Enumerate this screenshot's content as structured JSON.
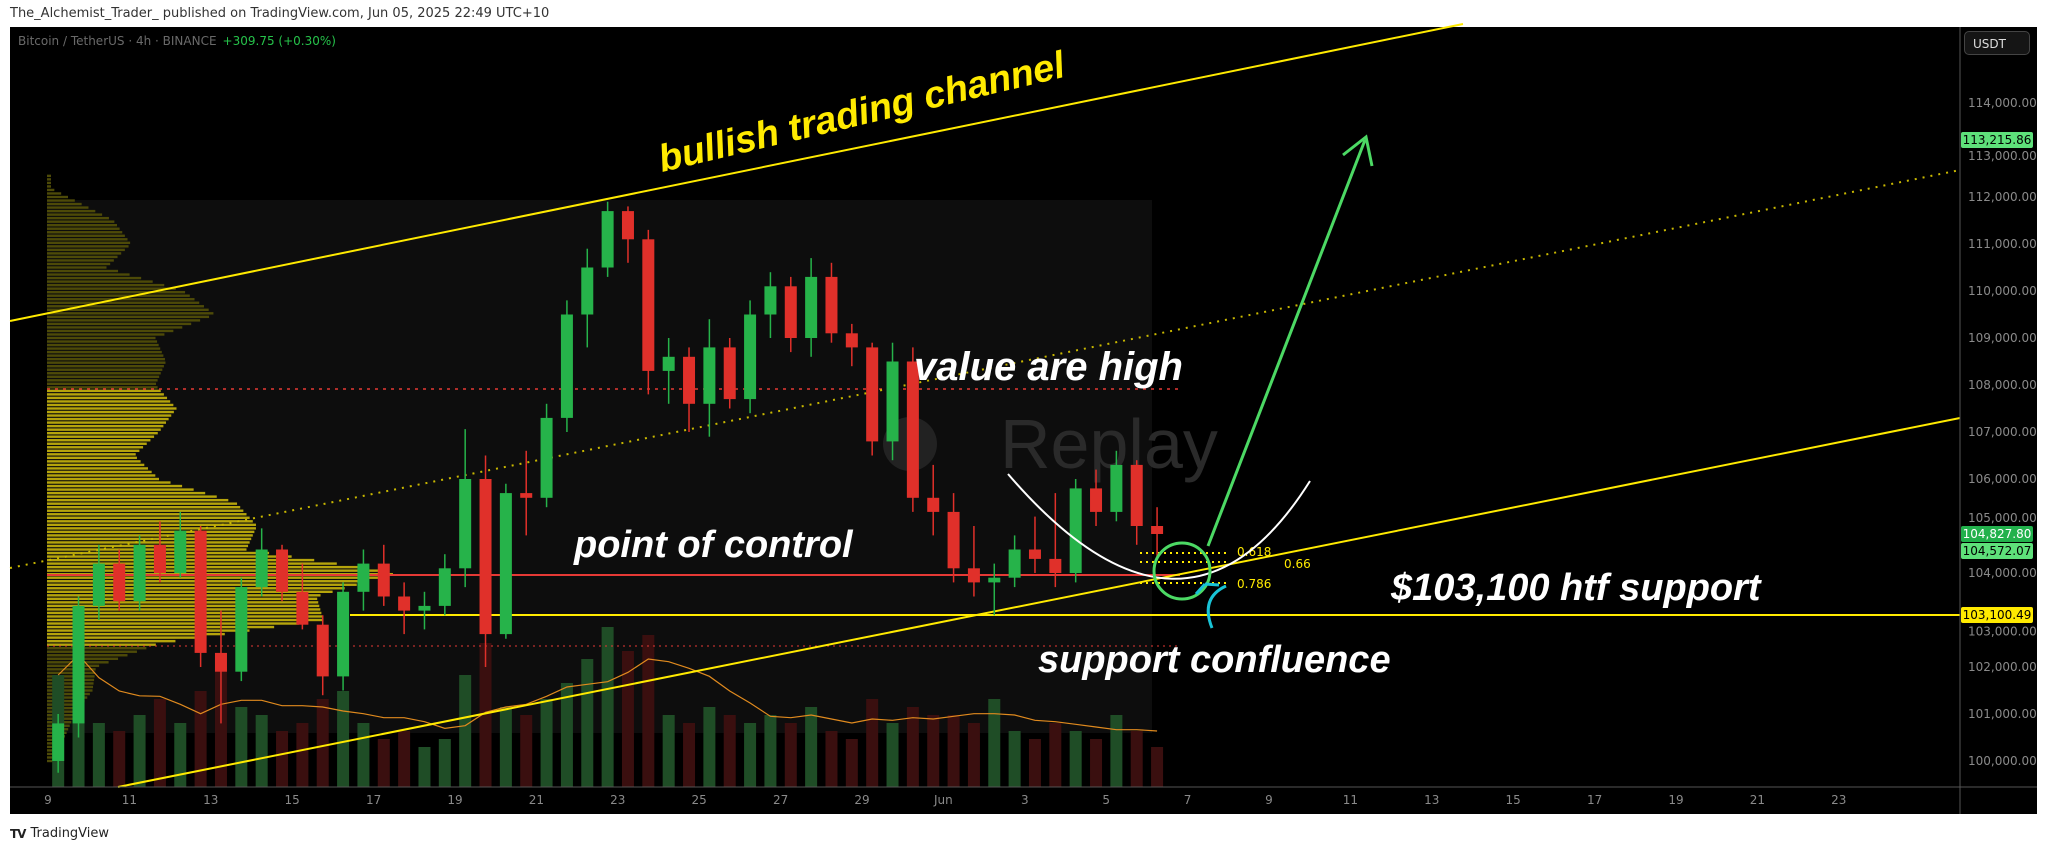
{
  "header": {
    "published": "The_Alchemist_Trader_ published on TradingView.com, Jun 05, 2025 22:49 UTC+10",
    "symbol": "Bitcoin / TetherUS · 4h · BINANCE",
    "change": "+309.75 (+0.30%)"
  },
  "footer": {
    "brand": "TradingView"
  },
  "watermark": "Replay",
  "colors": {
    "up": "#26b34a",
    "down": "#e0302a",
    "channel": "#ffea00",
    "poc": "#e53935",
    "arrow": "#4cd964",
    "circle": "#4cd964",
    "cyan_arrow": "#19c3d6",
    "curve": "#ffffff"
  },
  "annotations": {
    "channel": "bullish trading channel",
    "vah": "value are high",
    "poc": "point of control",
    "htf": "$103,100 htf support",
    "confluence": "support confluence",
    "fib_618": "0.618",
    "fib_66": "0.66",
    "fib_786": "0.786"
  },
  "chart_data": {
    "type": "candlestick",
    "symbol": "BTCUSDT",
    "currency": "USDT",
    "ylim": [
      99500,
      115500
    ],
    "y_ticks": [
      "114,000.00",
      "113,000.00",
      "112,000.00",
      "111,000.00",
      "110,000.00",
      "109,000.00",
      "108,000.00",
      "107,000.00",
      "106,000.00",
      "105,000.00",
      "104,000.00",
      "103,000.00",
      "102,000.00",
      "101,000.00",
      "100,000.00"
    ],
    "x_ticks": [
      "9",
      "11",
      "13",
      "15",
      "17",
      "19",
      "21",
      "23",
      "25",
      "27",
      "29",
      "Jun",
      "3",
      "5",
      "7",
      "9",
      "11",
      "13",
      "15",
      "17",
      "19",
      "21",
      "23"
    ],
    "price_tags": [
      {
        "label": "113,215.86",
        "value": 113215.86,
        "bg": "#5ee07a",
        "fg": "#000"
      },
      {
        "label": "104,827.80",
        "value": 104827.8,
        "bg": "#22b14c",
        "fg": "#fff"
      },
      {
        "label": "104,572.07",
        "value": 104572.07,
        "bg": "#5ee07a",
        "fg": "#000"
      },
      {
        "label": "103,100.49",
        "value": 103100.49,
        "bg": "#ffea00",
        "fg": "#000"
      }
    ],
    "levels": {
      "value_area_high": 107900,
      "point_of_control": 103950,
      "value_area_low": 102450,
      "htf_support": 103100.49
    },
    "candles_12h": [
      [
        100000,
        101000,
        99750,
        100800
      ],
      [
        100800,
        103500,
        100500,
        103300
      ],
      [
        103300,
        104600,
        103000,
        104200
      ],
      [
        104200,
        104500,
        103200,
        103400
      ],
      [
        103400,
        104800,
        103200,
        104600
      ],
      [
        104600,
        105100,
        103800,
        104000
      ],
      [
        104000,
        105300,
        103900,
        104900
      ],
      [
        104900,
        105000,
        102000,
        102300
      ],
      [
        102300,
        103200,
        100800,
        101900
      ],
      [
        101900,
        103900,
        101700,
        103700
      ],
      [
        103700,
        104950,
        103500,
        104500
      ],
      [
        104500,
        104600,
        103400,
        103600
      ],
      [
        103600,
        104200,
        102800,
        102900
      ],
      [
        102900,
        103100,
        101400,
        101800
      ],
      [
        101800,
        103800,
        101500,
        103600
      ],
      [
        103600,
        104500,
        103200,
        104200
      ],
      [
        104200,
        104600,
        103300,
        103500
      ],
      [
        103500,
        103800,
        102700,
        103200
      ],
      [
        103200,
        103600,
        102800,
        103300
      ],
      [
        103300,
        104400,
        103100,
        104100
      ],
      [
        104100,
        107060,
        103700,
        106000
      ],
      [
        106000,
        106500,
        102000,
        102700
      ],
      [
        102700,
        105900,
        102600,
        105700
      ],
      [
        105700,
        106600,
        104800,
        105600
      ],
      [
        105600,
        107600,
        105400,
        107300
      ],
      [
        107300,
        109800,
        107000,
        109500
      ],
      [
        109500,
        110900,
        108800,
        110500
      ],
      [
        110500,
        111900,
        110300,
        111700
      ],
      [
        111700,
        111800,
        110600,
        111100
      ],
      [
        111100,
        111300,
        107800,
        108300
      ],
      [
        108300,
        109000,
        107600,
        108600
      ],
      [
        108600,
        108800,
        107000,
        107600
      ],
      [
        107600,
        109400,
        106900,
        108800
      ],
      [
        108800,
        109000,
        107500,
        107700
      ],
      [
        107700,
        109800,
        107400,
        109500
      ],
      [
        109500,
        110400,
        109000,
        110100
      ],
      [
        110100,
        110300,
        108700,
        109000
      ],
      [
        109000,
        110700,
        108600,
        110300
      ],
      [
        110300,
        110600,
        108900,
        109100
      ],
      [
        109100,
        109300,
        108400,
        108800
      ],
      [
        108800,
        108900,
        106500,
        106800
      ],
      [
        106800,
        108900,
        106400,
        108500
      ],
      [
        108500,
        108800,
        105300,
        105600
      ],
      [
        105600,
        106300,
        104800,
        105300
      ],
      [
        105300,
        105700,
        103800,
        104100
      ],
      [
        104100,
        105000,
        103500,
        103800
      ],
      [
        103800,
        104200,
        103100,
        103900
      ],
      [
        103900,
        104800,
        103700,
        104500
      ],
      [
        104500,
        105200,
        104000,
        104300
      ],
      [
        104300,
        105700,
        103700,
        104000
      ],
      [
        104000,
        106000,
        103800,
        105800
      ],
      [
        105800,
        106200,
        105000,
        105300
      ],
      [
        105300,
        106600,
        105100,
        106300
      ],
      [
        106300,
        106400,
        104600,
        105000
      ],
      [
        105000,
        105400,
        104300,
        104830
      ]
    ],
    "volume_relative": [
      70,
      95,
      40,
      35,
      45,
      55,
      40,
      60,
      75,
      50,
      45,
      35,
      40,
      55,
      60,
      40,
      30,
      35,
      25,
      30,
      70,
      90,
      50,
      45,
      55,
      65,
      80,
      100,
      85,
      95,
      45,
      40,
      50,
      45,
      40,
      45,
      40,
      50,
      35,
      30,
      55,
      40,
      50,
      45,
      45,
      40,
      55,
      35,
      30,
      40,
      35,
      30,
      45,
      35,
      25
    ],
    "volume_profile": {
      "bin_start": 100000,
      "bin_step": 500,
      "relative_volume": [
        0.02,
        0.05,
        0.08,
        0.13,
        0.14,
        0.32,
        0.79,
        0.77,
        1.0,
        0.57,
        0.6,
        0.54,
        0.32,
        0.25,
        0.32,
        0.37,
        0.31,
        0.34,
        0.31,
        0.48,
        0.39,
        0.17,
        0.24,
        0.19,
        0.06
      ]
    }
  }
}
